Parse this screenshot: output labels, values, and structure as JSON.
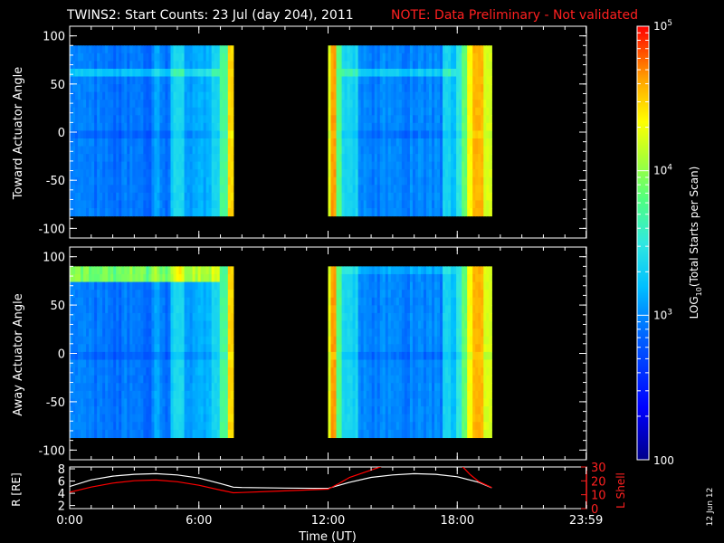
{
  "title": {
    "main": "TWINS2: Start Counts: 23 Jul (day 204), 2011",
    "note": "NOTE: Data Preliminary - Not validated"
  },
  "date_stamp": "12 Jun 12",
  "colors": {
    "background": "#000000",
    "axes": "#ffffff",
    "note": "#ff0000",
    "r_line": "#ffffff",
    "l_line": "#ff0000"
  },
  "chart_data": [
    {
      "type": "heatmap",
      "panel": "toward",
      "ylabel": "Toward Actuator Angle",
      "ylim": [
        -110,
        110
      ],
      "yticks": [
        -100,
        -50,
        0,
        50,
        100
      ],
      "xlim": [
        0,
        24
      ],
      "segments": [
        {
          "start": 0.0,
          "end": 7.6,
          "angle_range": [
            -87,
            90
          ]
        },
        {
          "start": 12.0,
          "end": 19.6,
          "angle_range": [
            -87,
            90
          ]
        }
      ]
    },
    {
      "type": "heatmap",
      "panel": "away",
      "ylabel": "Away Actuator Angle",
      "ylim": [
        -110,
        110
      ],
      "yticks": [
        -100,
        -50,
        0,
        50,
        100
      ],
      "xlim": [
        0,
        24
      ],
      "segments": [
        {
          "start": 0.0,
          "end": 7.6,
          "angle_range": [
            -87,
            90
          ]
        },
        {
          "start": 12.0,
          "end": 19.6,
          "angle_range": [
            -87,
            90
          ]
        }
      ]
    },
    {
      "type": "line",
      "panel": "ephemeris",
      "xlabel": "Time (UT)",
      "xlim": [
        0,
        24
      ],
      "xticks": [
        0,
        6,
        12,
        18,
        23.9833
      ],
      "xtick_labels": [
        "0:00",
        "6:00",
        "12:00",
        "18:00",
        "23:59"
      ],
      "left_axis": {
        "label": "R [RE]",
        "ylim": [
          1.5,
          8.3
        ],
        "ticks": [
          2,
          4,
          6,
          8
        ]
      },
      "right_axis": {
        "label": "L Shell",
        "ylim": [
          0,
          30
        ],
        "ticks": [
          0,
          10,
          20,
          30
        ]
      },
      "series": [
        {
          "axis": "left",
          "color": "#ffffff",
          "x": [
            0,
            1,
            2,
            3,
            4,
            5,
            6,
            7,
            7.6,
            8,
            10,
            12,
            13,
            14,
            15,
            16,
            17,
            18,
            19,
            19.6
          ],
          "y": [
            5.1,
            6.2,
            6.8,
            7.1,
            7.2,
            7.0,
            6.5,
            5.6,
            5.0,
            4.95,
            4.85,
            4.8,
            5.8,
            6.6,
            7.0,
            7.2,
            7.1,
            6.7,
            5.8,
            4.9
          ]
        },
        {
          "axis": "right",
          "color": "#ff0000",
          "x": [
            0,
            1,
            2,
            3,
            4,
            5,
            6,
            7,
            7.6,
            8,
            10,
            12,
            12.5,
            13,
            14.6
          ],
          "y": [
            11.8,
            15.5,
            18.4,
            20.1,
            20.6,
            19.4,
            16.8,
            13.4,
            11.4,
            11.6,
            12.8,
            14.0,
            18.0,
            22.5,
            31
          ]
        },
        {
          "axis": "right",
          "color": "#ff0000",
          "x": [
            18.2,
            18.6,
            19.0,
            19.6
          ],
          "y": [
            31,
            24.5,
            19.5,
            15.2
          ]
        }
      ]
    }
  ],
  "colorbar": {
    "label": "LOG10(Total Starts per Scan)",
    "label_main": "LOG",
    "label_sub": "10",
    "label_rest": "(Total Starts per Scan)",
    "scale": "log",
    "range": [
      100,
      100000
    ],
    "ticks": [
      {
        "value": 100,
        "base": "100",
        "exp": ""
      },
      {
        "value": 1000,
        "base": "10",
        "exp": "3"
      },
      {
        "value": 10000,
        "base": "10",
        "exp": "4"
      },
      {
        "value": 100000,
        "base": "10",
        "exp": "5"
      }
    ]
  }
}
